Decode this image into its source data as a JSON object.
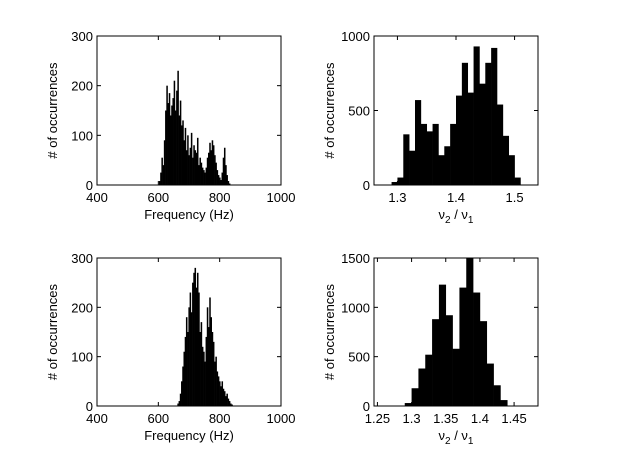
{
  "chart_data": [
    {
      "type": "bar",
      "ylabel": "# of occurrences",
      "xlabel": "Frequency (Hz)",
      "xlim": [
        400,
        1000
      ],
      "ylim": [
        0,
        300
      ],
      "xticks": [
        "400",
        "600",
        "800",
        "1000"
      ],
      "yticks": [
        "0",
        "100",
        "200",
        "300"
      ],
      "bin_width": 4,
      "x": [
        604,
        608,
        612,
        616,
        620,
        624,
        628,
        632,
        636,
        640,
        644,
        648,
        652,
        656,
        660,
        664,
        668,
        672,
        676,
        680,
        684,
        688,
        692,
        696,
        700,
        704,
        708,
        712,
        716,
        720,
        724,
        728,
        732,
        736,
        740,
        744,
        748,
        752,
        756,
        760,
        764,
        768,
        772,
        776,
        780,
        784,
        788,
        792,
        796,
        800,
        804,
        808,
        812,
        816,
        820,
        824,
        828,
        832
      ],
      "values": [
        8,
        25,
        55,
        40,
        90,
        150,
        200,
        165,
        185,
        140,
        160,
        175,
        210,
        150,
        190,
        230,
        140,
        170,
        120,
        130,
        90,
        115,
        70,
        100,
        60,
        75,
        105,
        55,
        80,
        70,
        65,
        95,
        40,
        55,
        45,
        35,
        30,
        25,
        35,
        55,
        65,
        85,
        70,
        90,
        80,
        60,
        45,
        30,
        20,
        15,
        10,
        25,
        55,
        75,
        40,
        20,
        8,
        3
      ],
      "color": "#000000"
    },
    {
      "type": "bar",
      "ylabel": "# of occurrences",
      "xlabel_parts": [
        "ν",
        "2",
        " / ν",
        "1"
      ],
      "xlim": [
        1.26,
        1.54
      ],
      "ylim": [
        0,
        1000
      ],
      "xticks": [
        "1.3",
        "1.4",
        "1.5"
      ],
      "yticks": [
        "0",
        "500",
        "1000"
      ],
      "bin_width": 0.01,
      "x": [
        1.295,
        1.305,
        1.315,
        1.325,
        1.335,
        1.345,
        1.355,
        1.365,
        1.375,
        1.385,
        1.395,
        1.405,
        1.415,
        1.425,
        1.435,
        1.445,
        1.455,
        1.465,
        1.475,
        1.485,
        1.495,
        1.505
      ],
      "values": [
        20,
        50,
        340,
        230,
        570,
        410,
        360,
        410,
        200,
        260,
        410,
        600,
        820,
        620,
        930,
        680,
        820,
        920,
        540,
        330,
        200,
        50
      ],
      "color": "#000000"
    },
    {
      "type": "bar",
      "ylabel": "# of occurrences",
      "xlabel": "Frequency (Hz)",
      "xlim": [
        400,
        1000
      ],
      "ylim": [
        0,
        300
      ],
      "xticks": [
        "400",
        "600",
        "800",
        "1000"
      ],
      "yticks": [
        "0",
        "100",
        "200",
        "300"
      ],
      "bin_width": 4,
      "x": [
        664,
        668,
        672,
        676,
        680,
        684,
        688,
        692,
        696,
        700,
        704,
        708,
        712,
        716,
        720,
        724,
        728,
        732,
        736,
        740,
        744,
        748,
        752,
        756,
        760,
        764,
        768,
        772,
        776,
        780,
        784,
        788,
        792,
        796,
        800,
        804,
        808,
        812,
        816,
        820,
        824,
        828,
        832,
        836,
        840
      ],
      "values": [
        5,
        10,
        25,
        50,
        80,
        110,
        140,
        180,
        150,
        200,
        230,
        190,
        250,
        270,
        280,
        240,
        270,
        230,
        150,
        170,
        120,
        110,
        90,
        140,
        200,
        160,
        220,
        180,
        150,
        130,
        90,
        100,
        70,
        60,
        50,
        40,
        50,
        35,
        30,
        20,
        25,
        15,
        10,
        5,
        3
      ],
      "color": "#000000"
    },
    {
      "type": "bar",
      "ylabel": "# of occurrences",
      "xlabel_parts": [
        "ν",
        "2",
        " / ν",
        "1"
      ],
      "xlim": [
        1.245,
        1.485
      ],
      "ylim": [
        0,
        1500
      ],
      "xticks": [
        "1.25",
        "1.3",
        "1.35",
        "1.4",
        "1.45"
      ],
      "yticks": [
        "0",
        "500",
        "1000",
        "1500"
      ],
      "bin_width": 0.01,
      "x": [
        1.295,
        1.305,
        1.315,
        1.325,
        1.335,
        1.345,
        1.355,
        1.365,
        1.375,
        1.385,
        1.395,
        1.405,
        1.415,
        1.425,
        1.435
      ],
      "values": [
        30,
        180,
        380,
        520,
        880,
        1230,
        920,
        580,
        1200,
        1500,
        1150,
        860,
        430,
        210,
        60
      ],
      "color": "#000000"
    }
  ]
}
